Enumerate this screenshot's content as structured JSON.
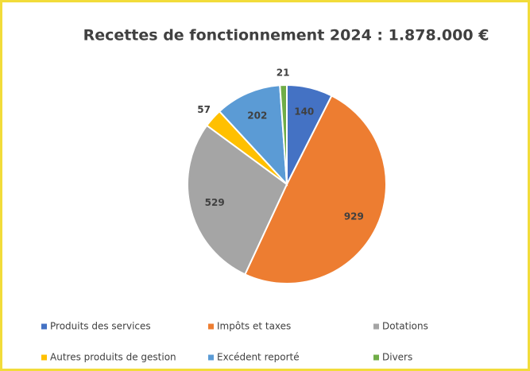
{
  "chart_data": {
    "type": "pie",
    "title": "Recettes de fonctionnement 2024 : 1.878.000 €",
    "categories": [
      "Produits des services",
      "Impôts et taxes",
      "Dotations",
      "Autres produits de gestion",
      "Excédent reporté",
      "Divers"
    ],
    "values": [
      140,
      929,
      529,
      57,
      202,
      21
    ],
    "colors": [
      "#4472c4",
      "#ed7d31",
      "#a5a5a5",
      "#ffc000",
      "#5b9bd5",
      "#70ad47"
    ],
    "legend": "bottom"
  }
}
